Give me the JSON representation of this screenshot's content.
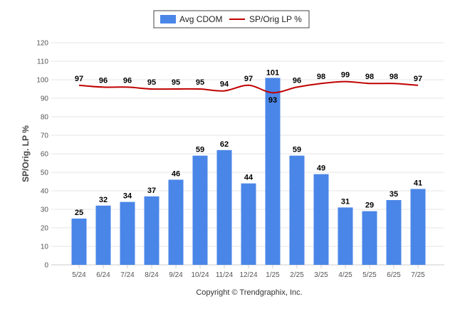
{
  "chart_data": {
    "type": "bar",
    "categories": [
      "5/24",
      "6/24",
      "7/24",
      "8/24",
      "9/24",
      "10/24",
      "11/24",
      "12/24",
      "1/25",
      "2/25",
      "3/25",
      "4/25",
      "5/25",
      "6/25",
      "7/25"
    ],
    "series": [
      {
        "name": "Avg CDOM",
        "type": "bar",
        "color": "#4a86e8",
        "values": [
          25,
          32,
          34,
          37,
          46,
          59,
          62,
          44,
          101,
          59,
          49,
          31,
          29,
          35,
          41
        ]
      },
      {
        "name": "SP/Orig LP %",
        "type": "line",
        "color": "#c00000",
        "values": [
          97,
          96,
          96,
          95,
          95,
          95,
          94,
          97,
          93,
          96,
          98,
          99,
          98,
          98,
          97
        ]
      }
    ],
    "ylabel": "SP/Orig. LP %",
    "ylim": [
      0,
      120
    ],
    "yticks": [
      0,
      10,
      20,
      30,
      40,
      50,
      60,
      70,
      80,
      90,
      100,
      110,
      120
    ],
    "grid": true,
    "legend": "top-center",
    "credit": "Copyright © Trendgraphix, Inc."
  }
}
